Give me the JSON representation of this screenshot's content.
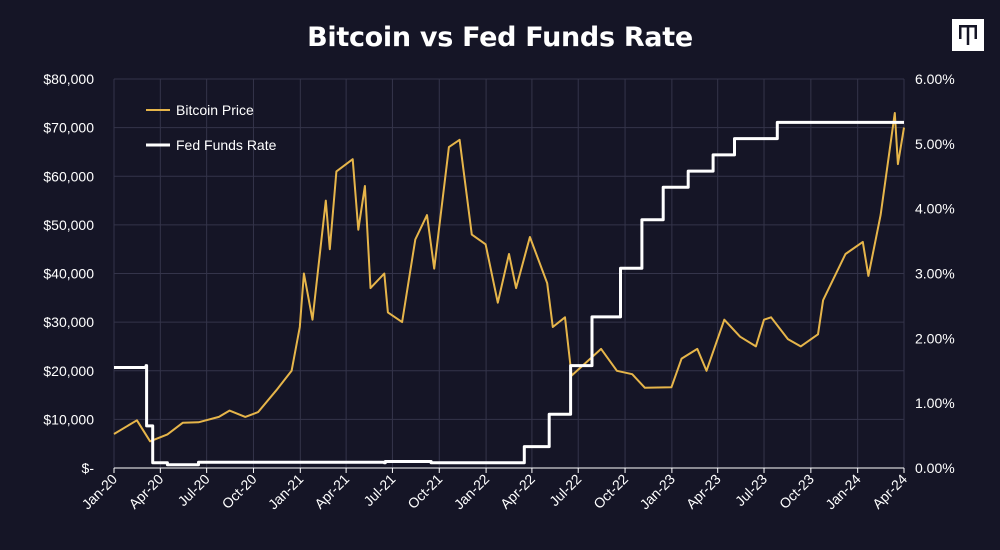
{
  "chart_data": {
    "type": "line",
    "title": "Bitcoin vs Fed Funds Rate",
    "x_ticks": [
      "Jan-20",
      "Apr-20",
      "Jul-20",
      "Oct-20",
      "Jan-21",
      "Apr-21",
      "Jul-21",
      "Oct-21",
      "Jan-22",
      "Apr-22",
      "Jul-22",
      "Oct-22",
      "Jan-23",
      "Apr-23",
      "Jul-23",
      "Oct-23",
      "Jan-24",
      "Apr-24"
    ],
    "y_left": {
      "ticks": [
        "$-",
        "$10,000",
        "$20,000",
        "$30,000",
        "$40,000",
        "$50,000",
        "$60,000",
        "$70,000",
        "$80,000"
      ],
      "lim": [
        0,
        80000
      ]
    },
    "y_right": {
      "ticks": [
        "0.00%",
        "1.00%",
        "2.00%",
        "3.00%",
        "4.00%",
        "5.00%",
        "6.00%"
      ],
      "lim": [
        0,
        6
      ]
    },
    "grid": true,
    "legend_position": "top-left",
    "series": [
      {
        "name": "Bitcoin Price",
        "axis": "left",
        "color": "#e6b54a",
        "points": [
          [
            "2020-01-01",
            7000
          ],
          [
            "2020-02-15",
            9800
          ],
          [
            "2020-03-12",
            5500
          ],
          [
            "2020-04-15",
            6900
          ],
          [
            "2020-05-15",
            9300
          ],
          [
            "2020-06-15",
            9400
          ],
          [
            "2020-07-25",
            10500
          ],
          [
            "2020-08-15",
            11800
          ],
          [
            "2020-09-15",
            10500
          ],
          [
            "2020-10-10",
            11500
          ],
          [
            "2020-11-15",
            16000
          ],
          [
            "2020-12-15",
            20000
          ],
          [
            "2020-12-31",
            29000
          ],
          [
            "2021-01-08",
            40000
          ],
          [
            "2021-01-25",
            30500
          ],
          [
            "2021-02-20",
            55000
          ],
          [
            "2021-02-28",
            45000
          ],
          [
            "2021-03-13",
            61000
          ],
          [
            "2021-04-14",
            63500
          ],
          [
            "2021-04-25",
            49000
          ],
          [
            "2021-05-08",
            58000
          ],
          [
            "2021-05-19",
            37000
          ],
          [
            "2021-06-15",
            40000
          ],
          [
            "2021-06-22",
            32000
          ],
          [
            "2021-07-20",
            30000
          ],
          [
            "2021-08-15",
            47000
          ],
          [
            "2021-09-07",
            52000
          ],
          [
            "2021-09-21",
            41000
          ],
          [
            "2021-10-20",
            66000
          ],
          [
            "2021-11-10",
            67500
          ],
          [
            "2021-12-04",
            48000
          ],
          [
            "2021-12-31",
            46000
          ],
          [
            "2022-01-24",
            34000
          ],
          [
            "2022-02-15",
            44000
          ],
          [
            "2022-03-01",
            37000
          ],
          [
            "2022-03-28",
            47500
          ],
          [
            "2022-05-01",
            38000
          ],
          [
            "2022-05-12",
            29000
          ],
          [
            "2022-06-05",
            31000
          ],
          [
            "2022-06-18",
            19000
          ],
          [
            "2022-08-15",
            24500
          ],
          [
            "2022-09-15",
            20000
          ],
          [
            "2022-10-15",
            19300
          ],
          [
            "2022-11-09",
            16500
          ],
          [
            "2022-12-31",
            16600
          ],
          [
            "2023-01-20",
            22500
          ],
          [
            "2023-02-20",
            24500
          ],
          [
            "2023-03-10",
            20000
          ],
          [
            "2023-04-14",
            30500
          ],
          [
            "2023-05-15",
            27000
          ],
          [
            "2023-06-15",
            25000
          ],
          [
            "2023-07-01",
            30500
          ],
          [
            "2023-07-15",
            31000
          ],
          [
            "2023-08-17",
            26500
          ],
          [
            "2023-09-11",
            25000
          ],
          [
            "2023-10-15",
            27500
          ],
          [
            "2023-10-25",
            34500
          ],
          [
            "2023-12-08",
            44000
          ],
          [
            "2024-01-11",
            46500
          ],
          [
            "2024-01-22",
            39500
          ],
          [
            "2024-02-15",
            52000
          ],
          [
            "2024-03-14",
            73000
          ],
          [
            "2024-03-20",
            62500
          ],
          [
            "2024-04-01",
            70000
          ]
        ]
      },
      {
        "name": "Fed Funds Rate",
        "axis": "right",
        "color": "#ffffff",
        "points": [
          [
            "2020-01-01",
            1.55
          ],
          [
            "2020-03-04",
            1.58
          ],
          [
            "2020-03-05",
            0.65
          ],
          [
            "2020-03-16",
            0.65
          ],
          [
            "2020-03-17",
            0.08
          ],
          [
            "2020-04-15",
            0.05
          ],
          [
            "2020-06-15",
            0.09
          ],
          [
            "2020-09-15",
            0.09
          ],
          [
            "2020-12-31",
            0.09
          ],
          [
            "2021-06-15",
            0.08
          ],
          [
            "2021-06-17",
            0.1
          ],
          [
            "2021-09-15",
            0.08
          ],
          [
            "2022-03-16",
            0.08
          ],
          [
            "2022-03-17",
            0.33
          ],
          [
            "2022-05-04",
            0.33
          ],
          [
            "2022-05-05",
            0.83
          ],
          [
            "2022-06-15",
            0.83
          ],
          [
            "2022-06-16",
            1.58
          ],
          [
            "2022-07-27",
            1.58
          ],
          [
            "2022-07-28",
            2.33
          ],
          [
            "2022-09-21",
            2.33
          ],
          [
            "2022-09-22",
            3.08
          ],
          [
            "2022-11-02",
            3.08
          ],
          [
            "2022-11-03",
            3.83
          ],
          [
            "2022-12-14",
            3.83
          ],
          [
            "2022-12-15",
            4.33
          ],
          [
            "2023-02-01",
            4.33
          ],
          [
            "2023-02-02",
            4.58
          ],
          [
            "2023-03-22",
            4.58
          ],
          [
            "2023-03-23",
            4.83
          ],
          [
            "2023-05-03",
            4.83
          ],
          [
            "2023-05-04",
            5.08
          ],
          [
            "2023-07-26",
            5.08
          ],
          [
            "2023-07-27",
            5.33
          ],
          [
            "2024-04-01",
            5.33
          ]
        ]
      }
    ]
  }
}
